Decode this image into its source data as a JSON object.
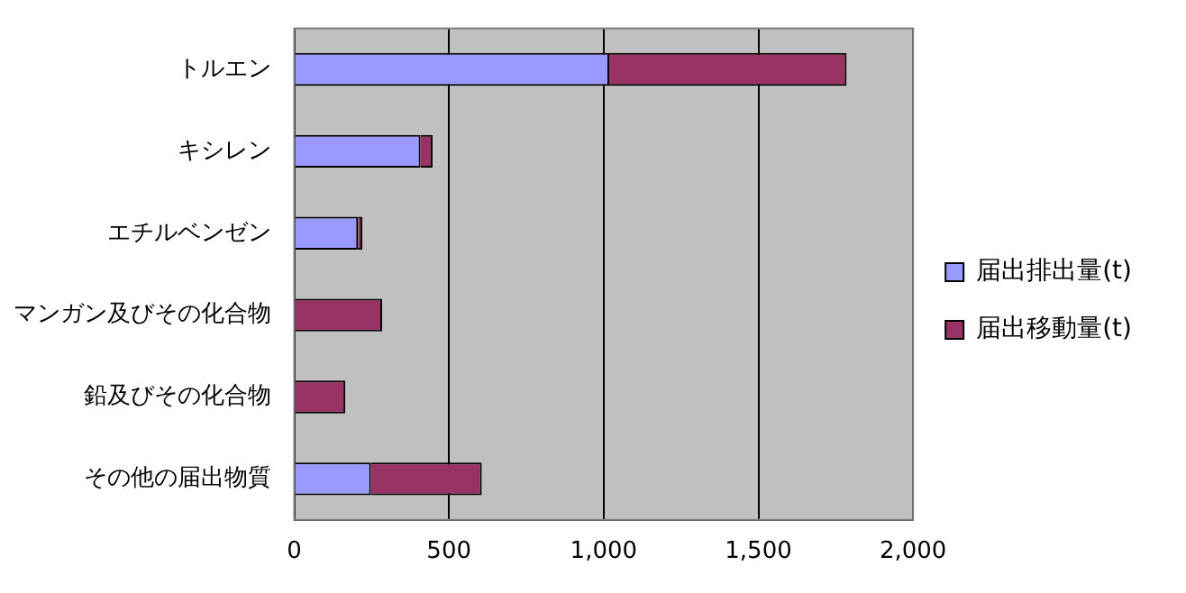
{
  "chart_data": {
    "type": "bar",
    "orientation": "horizontal",
    "stacked": true,
    "categories": [
      "トルエン",
      "キシレン",
      "エチルベンゼン",
      "マンガン及びその化合物",
      "鉛及びその化合物",
      "その他の届出物質"
    ],
    "series": [
      {
        "name": "届出排出量(t)",
        "color": "#9999ff",
        "values": [
          1018,
          408,
          206,
          0,
          0,
          248
        ]
      },
      {
        "name": "届出移動量(t)",
        "color": "#993366",
        "values": [
          767,
          39,
          14,
          284,
          165,
          358
        ]
      }
    ],
    "xlim": [
      0,
      2000
    ],
    "xticks": [
      0,
      {
        "value": 500,
        "label": "500"
      },
      {
        "value": 1000,
        "label": "1,000"
      },
      {
        "value": 1500,
        "label": "1,500"
      },
      {
        "value": 2000,
        "label": "2,000"
      }
    ],
    "grid": "x",
    "legend": "right"
  }
}
